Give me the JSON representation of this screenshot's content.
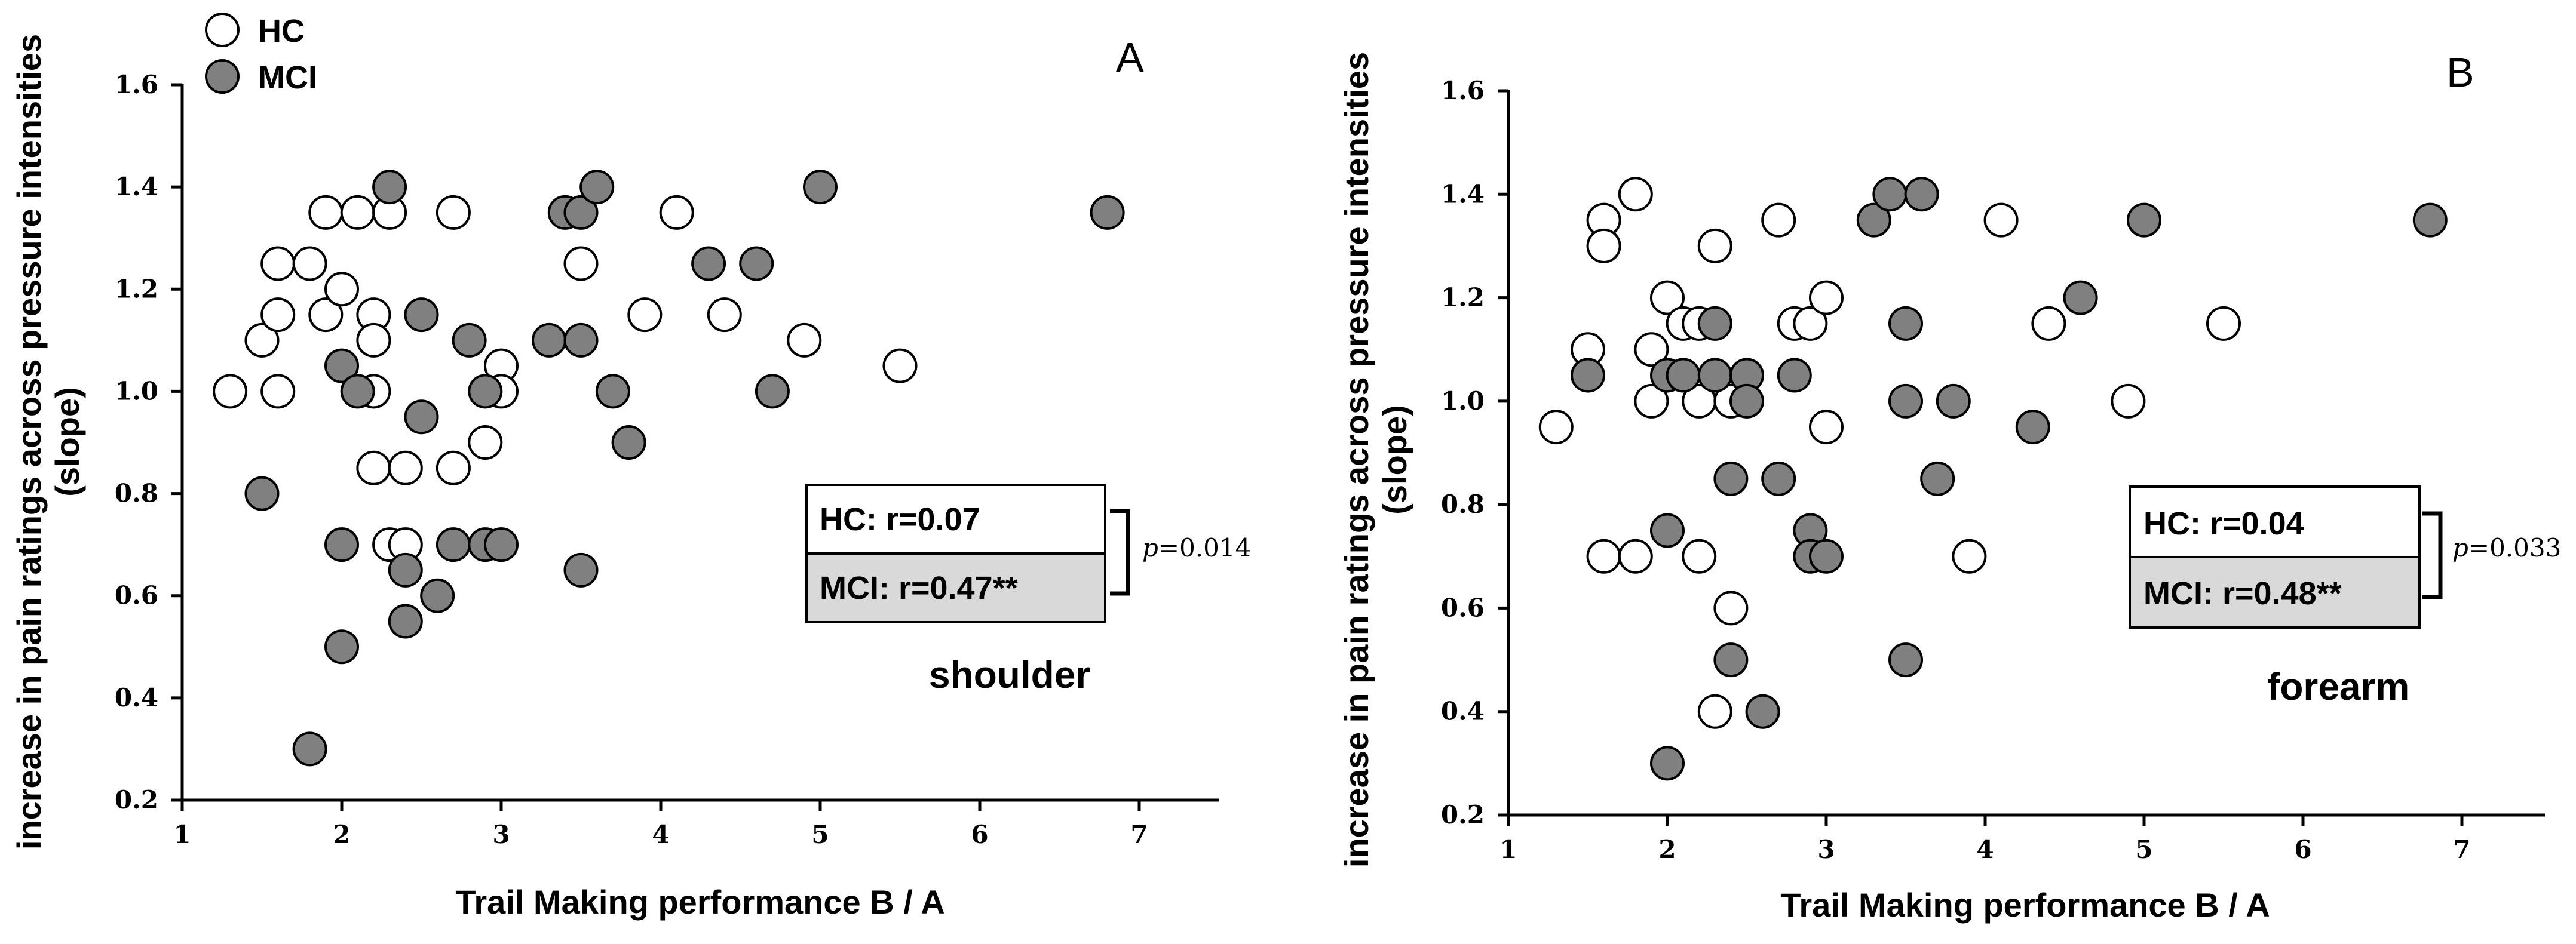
{
  "colors": {
    "hc_fill": "#ffffff",
    "mci_fill": "#808080",
    "mci_box_fill": "#d9d9d9",
    "stroke": "#000000"
  },
  "legend": {
    "items": [
      {
        "label": "HC",
        "group": "hc"
      },
      {
        "label": "MCI",
        "group": "mci"
      }
    ]
  },
  "chart_data": [
    {
      "type": "scatter",
      "panel": "A",
      "region": "shoulder",
      "xlabel": "Trail Making performance  B / A",
      "ylabel_line1": "increase in pain ratings across pressure intensities",
      "ylabel_line2": "(slope)",
      "xlim": [
        1,
        7.5
      ],
      "ylim": [
        0.2,
        1.6
      ],
      "xticks": [
        1,
        2,
        3,
        4,
        5,
        6,
        7
      ],
      "xtick_labels": [
        "1",
        "2",
        "3",
        "4",
        "5",
        "6",
        "7"
      ],
      "yticks": [
        0.2,
        0.4,
        0.6,
        0.8,
        1.0,
        1.2,
        1.4,
        1.6
      ],
      "ytick_labels": [
        "0.2",
        "0.4",
        "0.6",
        "0.8",
        "1.0",
        "1.2",
        "1.4",
        "1.6"
      ],
      "stats": {
        "hc_text": "HC:   r=0.07",
        "mci_text": "MCI: r=0.47**",
        "p_prefix": "p",
        "p_value": "=0.014"
      },
      "series": [
        {
          "name": "HC",
          "points": [
            [
              1.3,
              1.0
            ],
            [
              1.5,
              1.1
            ],
            [
              1.6,
              1.25
            ],
            [
              1.6,
              1.15
            ],
            [
              1.6,
              1.0
            ],
            [
              1.8,
              1.25
            ],
            [
              1.9,
              1.35
            ],
            [
              1.9,
              1.15
            ],
            [
              2.0,
              1.2
            ],
            [
              2.1,
              1.35
            ],
            [
              2.2,
              1.15
            ],
            [
              2.2,
              1.1
            ],
            [
              2.2,
              1.0
            ],
            [
              2.2,
              0.85
            ],
            [
              2.3,
              1.35
            ],
            [
              2.3,
              0.7
            ],
            [
              2.4,
              0.85
            ],
            [
              2.4,
              0.7
            ],
            [
              2.7,
              1.35
            ],
            [
              2.7,
              0.85
            ],
            [
              2.9,
              0.9
            ],
            [
              3.0,
              1.05
            ],
            [
              3.0,
              1.0
            ],
            [
              3.5,
              1.25
            ],
            [
              3.9,
              1.15
            ],
            [
              4.1,
              1.35
            ],
            [
              4.4,
              1.15
            ],
            [
              4.9,
              1.1
            ],
            [
              5.5,
              1.05
            ]
          ]
        },
        {
          "name": "MCI",
          "points": [
            [
              1.5,
              0.8
            ],
            [
              1.8,
              0.3
            ],
            [
              2.0,
              1.05
            ],
            [
              2.0,
              0.7
            ],
            [
              2.0,
              0.5
            ],
            [
              2.1,
              1.0
            ],
            [
              2.3,
              1.4
            ],
            [
              2.4,
              0.65
            ],
            [
              2.4,
              0.55
            ],
            [
              2.5,
              1.15
            ],
            [
              2.5,
              0.95
            ],
            [
              2.6,
              0.6
            ],
            [
              2.7,
              0.7
            ],
            [
              2.8,
              1.1
            ],
            [
              2.9,
              1.0
            ],
            [
              2.9,
              0.7
            ],
            [
              3.0,
              0.7
            ],
            [
              3.3,
              1.1
            ],
            [
              3.4,
              1.35
            ],
            [
              3.5,
              1.35
            ],
            [
              3.5,
              1.1
            ],
            [
              3.5,
              0.65
            ],
            [
              3.6,
              1.4
            ],
            [
              3.7,
              1.0
            ],
            [
              3.8,
              0.9
            ],
            [
              4.3,
              1.25
            ],
            [
              4.6,
              1.25
            ],
            [
              4.7,
              1.0
            ],
            [
              5.0,
              1.4
            ],
            [
              6.8,
              1.35
            ]
          ]
        }
      ]
    },
    {
      "type": "scatter",
      "panel": "B",
      "region": "forearm",
      "xlabel": "Trail Making performance  B / A",
      "ylabel_line1": "increase in pain ratings across pressure intensities",
      "ylabel_line2": "(slope)",
      "xlim": [
        1,
        7.5
      ],
      "ylim": [
        0.2,
        1.6
      ],
      "xticks": [
        1,
        2,
        3,
        4,
        5,
        6,
        7
      ],
      "xtick_labels": [
        "1",
        "2",
        "3",
        "4",
        "5",
        "6",
        "7"
      ],
      "yticks": [
        0.2,
        0.4,
        0.6,
        0.8,
        1.0,
        1.2,
        1.4,
        1.6
      ],
      "ytick_labels": [
        "0.2",
        "0.4",
        "0.6",
        "0.8",
        "1.0",
        "1.2",
        "1.4",
        "1.6"
      ],
      "stats": {
        "hc_text": "HC:   r=0.04",
        "mci_text": "MCI: r=0.48**",
        "p_prefix": "p",
        "p_value": "=0.033"
      },
      "series": [
        {
          "name": "HC",
          "points": [
            [
              1.3,
              0.95
            ],
            [
              1.5,
              1.1
            ],
            [
              1.6,
              1.35
            ],
            [
              1.6,
              1.3
            ],
            [
              1.6,
              0.7
            ],
            [
              1.8,
              1.4
            ],
            [
              1.8,
              0.7
            ],
            [
              1.9,
              1.1
            ],
            [
              1.9,
              1.0
            ],
            [
              2.0,
              1.2
            ],
            [
              2.1,
              1.15
            ],
            [
              2.2,
              1.15
            ],
            [
              2.2,
              1.0
            ],
            [
              2.2,
              0.7
            ],
            [
              2.3,
              1.3
            ],
            [
              2.3,
              0.4
            ],
            [
              2.4,
              1.0
            ],
            [
              2.4,
              0.6
            ],
            [
              2.7,
              1.35
            ],
            [
              2.8,
              1.15
            ],
            [
              2.9,
              1.15
            ],
            [
              3.0,
              1.2
            ],
            [
              3.0,
              0.95
            ],
            [
              3.9,
              0.7
            ],
            [
              4.1,
              1.35
            ],
            [
              4.4,
              1.15
            ],
            [
              4.9,
              1.0
            ],
            [
              5.5,
              1.15
            ]
          ]
        },
        {
          "name": "MCI",
          "points": [
            [
              1.5,
              1.05
            ],
            [
              2.0,
              1.05
            ],
            [
              2.0,
              0.75
            ],
            [
              2.0,
              0.3
            ],
            [
              2.1,
              1.05
            ],
            [
              2.3,
              1.15
            ],
            [
              2.3,
              1.05
            ],
            [
              2.4,
              0.85
            ],
            [
              2.4,
              0.5
            ],
            [
              2.5,
              1.05
            ],
            [
              2.5,
              1.0
            ],
            [
              2.6,
              0.4
            ],
            [
              2.7,
              0.85
            ],
            [
              2.8,
              1.05
            ],
            [
              2.9,
              0.75
            ],
            [
              2.9,
              0.7
            ],
            [
              3.0,
              0.7
            ],
            [
              3.3,
              1.35
            ],
            [
              3.4,
              1.4
            ],
            [
              3.5,
              1.15
            ],
            [
              3.5,
              1.0
            ],
            [
              3.5,
              0.5
            ],
            [
              3.6,
              1.4
            ],
            [
              3.7,
              0.85
            ],
            [
              3.8,
              1.0
            ],
            [
              4.3,
              0.95
            ],
            [
              4.6,
              1.2
            ],
            [
              5.0,
              1.35
            ],
            [
              6.8,
              1.35
            ]
          ]
        }
      ]
    }
  ]
}
